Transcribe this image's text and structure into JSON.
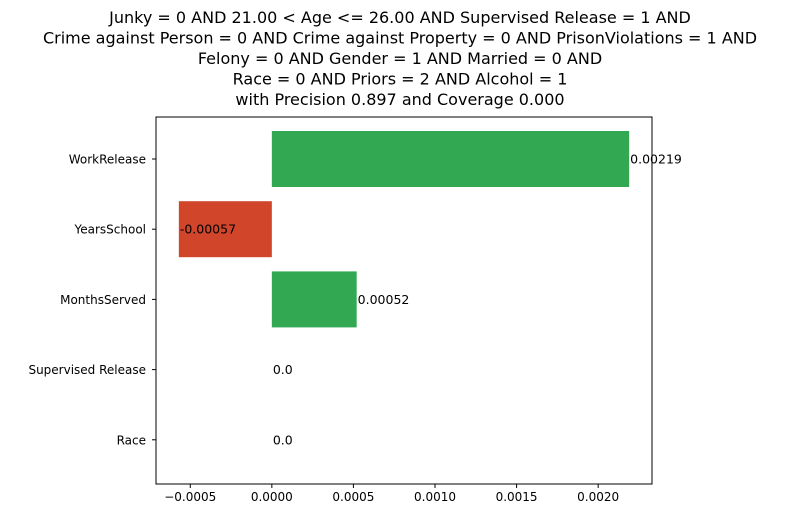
{
  "chart_data": {
    "type": "bar",
    "orientation": "horizontal",
    "title_lines": [
      "Junky = 0 AND 21.00 < Age <= 26.00 AND Supervised Release = 1 AND",
      "Crime against Person = 0 AND Crime against Property = 0 AND PrisonViolations = 1 AND",
      "Felony = 0 AND Gender = 1 AND Married = 0 AND",
      "Race = 0 AND Priors = 2 AND Alcohol = 1",
      "with Precision 0.897 and Coverage 0.000"
    ],
    "categories": [
      "WorkRelease",
      "YearsSchool",
      "MonthsServed",
      "Supervised Release",
      "Race"
    ],
    "values": [
      0.00219,
      -0.00057,
      0.00052,
      0.0,
      0.0
    ],
    "data_labels": [
      "0.00219",
      "-0.00057",
      "0.00052",
      "0.0",
      "0.0"
    ],
    "colors": {
      "positive": "#33a852",
      "negative": "#d1462b"
    },
    "xlim": [
      -0.00071,
      0.00233
    ],
    "xticks": [
      -0.0005,
      0.0,
      0.0005,
      0.001,
      0.0015,
      0.002
    ],
    "xtick_labels": [
      "−0.0005",
      "0.0000",
      "0.0005",
      "0.0010",
      "0.0015",
      "0.0020"
    ],
    "xlabel": "",
    "ylabel": "",
    "grid": false
  }
}
